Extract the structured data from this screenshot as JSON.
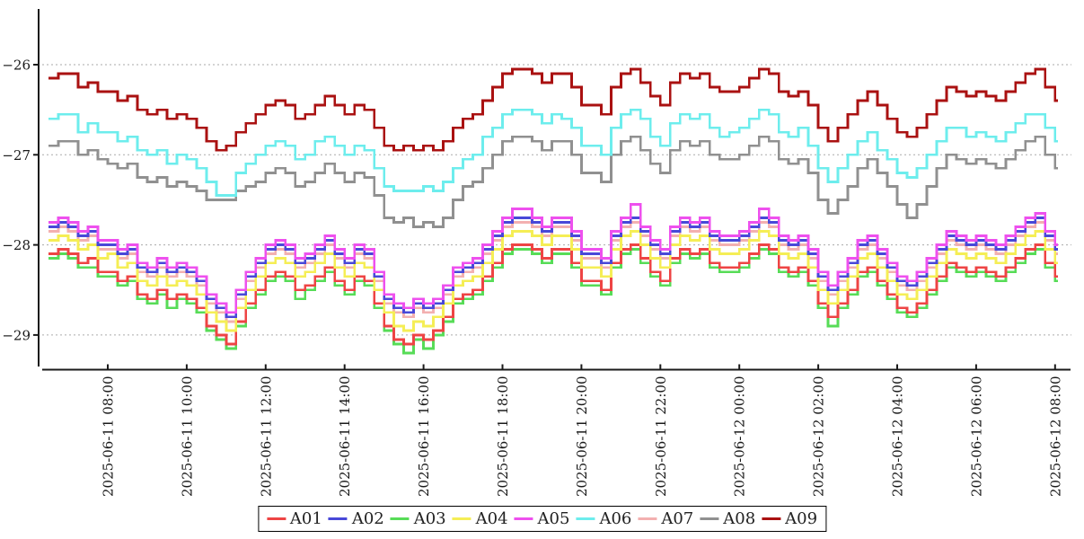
{
  "figure": {
    "background": "#ffffff"
  },
  "chart_data": {
    "type": "line",
    "step_style": true,
    "title": "",
    "xlabel": "",
    "ylabel": "",
    "grid": "horizontal-dotted",
    "legend_position": "bottom-center",
    "x_start": "2025-06-11 06:30",
    "x_interval_minutes": 15,
    "x_tick_labels": [
      "2025-06-11 08:00",
      "2025-06-11 10:00",
      "2025-06-11 12:00",
      "2025-06-11 14:00",
      "2025-06-11 16:00",
      "2025-06-11 18:00",
      "2025-06-11 20:00",
      "2025-06-11 22:00",
      "2025-06-12 00:00",
      "2025-06-12 02:00",
      "2025-06-12 04:00",
      "2025-06-12 06:00",
      "2025-06-12 08:00"
    ],
    "y_ticks": [
      -26,
      -27,
      -28,
      -29
    ],
    "y_tick_labels": [
      "−26",
      "−27",
      "−28",
      "−29"
    ],
    "ylim": [
      -29.35,
      -25.38
    ],
    "grid_color": "#aaaaaa",
    "axis_color": "#1a1a1a",
    "series": [
      {
        "name": "A01",
        "color": "#ee4444",
        "z": 2,
        "values": [
          -28.1,
          -28.05,
          -28.1,
          -28.2,
          -28.15,
          -28.3,
          -28.3,
          -28.4,
          -28.35,
          -28.55,
          -28.6,
          -28.5,
          -28.6,
          -28.55,
          -28.6,
          -28.7,
          -28.9,
          -29.0,
          -29.1,
          -28.85,
          -28.65,
          -28.5,
          -28.35,
          -28.3,
          -28.35,
          -28.5,
          -28.45,
          -28.35,
          -28.25,
          -28.4,
          -28.5,
          -28.35,
          -28.4,
          -28.65,
          -28.9,
          -29.05,
          -29.1,
          -29.0,
          -29.05,
          -28.95,
          -28.8,
          -28.6,
          -28.55,
          -28.5,
          -28.35,
          -28.2,
          -28.05,
          -28.0,
          -28.0,
          -28.05,
          -28.15,
          -28.05,
          -28.05,
          -28.2,
          -28.4,
          -28.4,
          -28.5,
          -28.2,
          -28.05,
          -28.0,
          -28.15,
          -28.3,
          -28.4,
          -28.15,
          -28.05,
          -28.1,
          -28.05,
          -28.2,
          -28.25,
          -28.25,
          -28.2,
          -28.1,
          -28.0,
          -28.05,
          -28.25,
          -28.3,
          -28.25,
          -28.4,
          -28.65,
          -28.8,
          -28.65,
          -28.5,
          -28.3,
          -28.25,
          -28.4,
          -28.55,
          -28.7,
          -28.75,
          -28.65,
          -28.5,
          -28.35,
          -28.2,
          -28.25,
          -28.3,
          -28.25,
          -28.3,
          -28.35,
          -28.25,
          -28.15,
          -28.05,
          -28.0,
          -28.2,
          -28.35
        ]
      },
      {
        "name": "A02",
        "color": "#4848d8",
        "z": 4,
        "values": [
          -27.8,
          -27.75,
          -27.8,
          -27.9,
          -27.85,
          -28.0,
          -28.0,
          -28.1,
          -28.05,
          -28.25,
          -28.3,
          -28.2,
          -28.3,
          -28.25,
          -28.3,
          -28.4,
          -28.6,
          -28.7,
          -28.8,
          -28.55,
          -28.35,
          -28.2,
          -28.05,
          -28.0,
          -28.05,
          -28.2,
          -28.15,
          -28.05,
          -27.95,
          -28.1,
          -28.2,
          -28.05,
          -28.1,
          -28.35,
          -28.6,
          -28.7,
          -28.75,
          -28.65,
          -28.7,
          -28.65,
          -28.5,
          -28.3,
          -28.25,
          -28.2,
          -28.05,
          -27.9,
          -27.75,
          -27.7,
          -27.7,
          -27.75,
          -27.85,
          -27.75,
          -27.75,
          -27.9,
          -28.1,
          -28.1,
          -28.2,
          -27.9,
          -27.75,
          -27.7,
          -27.85,
          -28.0,
          -28.1,
          -27.85,
          -27.75,
          -27.8,
          -27.75,
          -27.9,
          -27.95,
          -27.95,
          -27.9,
          -27.8,
          -27.7,
          -27.75,
          -27.95,
          -28.0,
          -27.95,
          -28.1,
          -28.35,
          -28.5,
          -28.35,
          -28.2,
          -28.0,
          -27.95,
          -28.1,
          -28.25,
          -28.4,
          -28.45,
          -28.35,
          -28.2,
          -28.05,
          -27.9,
          -27.95,
          -28.0,
          -27.95,
          -28.0,
          -28.05,
          -27.95,
          -27.85,
          -27.75,
          -27.7,
          -27.9,
          -28.05
        ]
      },
      {
        "name": "A03",
        "color": "#57dc57",
        "z": 1,
        "values": [
          -28.15,
          -28.1,
          -28.15,
          -28.25,
          -28.25,
          -28.35,
          -28.35,
          -28.45,
          -28.4,
          -28.6,
          -28.65,
          -28.55,
          -28.7,
          -28.6,
          -28.65,
          -28.75,
          -28.95,
          -29.05,
          -29.15,
          -28.9,
          -28.7,
          -28.55,
          -28.4,
          -28.35,
          -28.4,
          -28.6,
          -28.5,
          -28.4,
          -28.3,
          -28.45,
          -28.55,
          -28.4,
          -28.45,
          -28.7,
          -28.95,
          -29.1,
          -29.2,
          -29.05,
          -29.15,
          -29.0,
          -28.85,
          -28.65,
          -28.6,
          -28.55,
          -28.4,
          -28.25,
          -28.1,
          -28.05,
          -28.05,
          -28.1,
          -28.2,
          -28.1,
          -28.1,
          -28.25,
          -28.45,
          -28.45,
          -28.55,
          -28.25,
          -28.1,
          -28.05,
          -28.2,
          -28.35,
          -28.45,
          -28.2,
          -28.1,
          -28.15,
          -28.1,
          -28.25,
          -28.3,
          -28.3,
          -28.25,
          -28.15,
          -28.05,
          -28.1,
          -28.3,
          -28.35,
          -28.3,
          -28.45,
          -28.7,
          -28.9,
          -28.7,
          -28.55,
          -28.35,
          -28.3,
          -28.45,
          -28.6,
          -28.75,
          -28.8,
          -28.7,
          -28.55,
          -28.4,
          -28.25,
          -28.3,
          -28.35,
          -28.3,
          -28.35,
          -28.4,
          -28.3,
          -28.2,
          -28.1,
          -28.05,
          -28.25,
          -28.4
        ]
      },
      {
        "name": "A04",
        "color": "#f5ee55",
        "z": 3,
        "values": [
          -27.95,
          -27.9,
          -27.95,
          -28.05,
          -28.0,
          -28.15,
          -28.1,
          -28.25,
          -28.2,
          -28.4,
          -28.45,
          -28.35,
          -28.45,
          -28.4,
          -28.45,
          -28.55,
          -28.75,
          -28.85,
          -28.95,
          -28.7,
          -28.5,
          -28.35,
          -28.2,
          -28.15,
          -28.2,
          -28.35,
          -28.3,
          -28.2,
          -28.1,
          -28.25,
          -28.35,
          -28.2,
          -28.25,
          -28.5,
          -28.75,
          -28.9,
          -28.95,
          -28.85,
          -28.9,
          -28.8,
          -28.65,
          -28.45,
          -28.4,
          -28.35,
          -28.2,
          -28.05,
          -27.9,
          -27.85,
          -27.85,
          -27.9,
          -28.0,
          -27.9,
          -27.9,
          -28.05,
          -28.25,
          -28.25,
          -28.35,
          -28.05,
          -27.9,
          -27.85,
          -28.0,
          -28.15,
          -28.25,
          -28.0,
          -27.9,
          -27.95,
          -27.9,
          -28.05,
          -28.1,
          -28.1,
          -28.05,
          -27.95,
          -27.85,
          -27.9,
          -28.1,
          -28.15,
          -28.1,
          -28.25,
          -28.5,
          -28.65,
          -28.5,
          -28.35,
          -28.15,
          -28.1,
          -28.25,
          -28.4,
          -28.55,
          -28.6,
          -28.5,
          -28.35,
          -28.2,
          -28.05,
          -28.1,
          -28.15,
          -28.1,
          -28.15,
          -28.2,
          -28.1,
          -28.0,
          -27.9,
          -27.85,
          -28.05,
          -28.2
        ]
      },
      {
        "name": "A05",
        "color": "#ee50ee",
        "z": 5,
        "values": [
          -27.75,
          -27.7,
          -27.75,
          -27.85,
          -27.8,
          -27.95,
          -27.95,
          -28.05,
          -28.0,
          -28.2,
          -28.25,
          -28.15,
          -28.25,
          -28.2,
          -28.25,
          -28.35,
          -28.55,
          -28.65,
          -28.75,
          -28.5,
          -28.3,
          -28.15,
          -28.0,
          -27.95,
          -28.0,
          -28.15,
          -28.1,
          -28.0,
          -27.9,
          -28.05,
          -28.15,
          -28.0,
          -28.05,
          -28.3,
          -28.55,
          -28.65,
          -28.7,
          -28.6,
          -28.65,
          -28.6,
          -28.45,
          -28.25,
          -28.2,
          -28.15,
          -28.0,
          -27.85,
          -27.7,
          -27.6,
          -27.6,
          -27.7,
          -27.8,
          -27.7,
          -27.7,
          -27.85,
          -28.05,
          -28.05,
          -28.15,
          -27.85,
          -27.7,
          -27.55,
          -27.8,
          -27.95,
          -28.05,
          -27.8,
          -27.7,
          -27.75,
          -27.7,
          -27.85,
          -27.9,
          -27.9,
          -27.85,
          -27.75,
          -27.6,
          -27.7,
          -27.9,
          -27.95,
          -27.9,
          -28.05,
          -28.3,
          -28.45,
          -28.3,
          -28.15,
          -27.95,
          -27.9,
          -28.05,
          -28.2,
          -28.35,
          -28.4,
          -28.3,
          -28.15,
          -28.0,
          -27.85,
          -27.9,
          -27.95,
          -27.9,
          -27.95,
          -28.0,
          -27.9,
          -27.8,
          -27.7,
          -27.65,
          -27.85,
          -28.0
        ]
      },
      {
        "name": "A06",
        "color": "#6deded",
        "z": 7,
        "values": [
          -26.6,
          -26.55,
          -26.55,
          -26.75,
          -26.65,
          -26.75,
          -26.75,
          -26.85,
          -26.8,
          -26.95,
          -27.0,
          -26.95,
          -27.1,
          -27.0,
          -27.05,
          -27.15,
          -27.3,
          -27.45,
          -27.45,
          -27.2,
          -27.1,
          -27.0,
          -26.9,
          -26.85,
          -26.9,
          -27.05,
          -27.0,
          -26.85,
          -26.8,
          -26.9,
          -27.0,
          -26.9,
          -26.95,
          -27.15,
          -27.35,
          -27.4,
          -27.4,
          -27.4,
          -27.35,
          -27.4,
          -27.3,
          -27.15,
          -27.05,
          -27.0,
          -26.8,
          -26.7,
          -26.55,
          -26.5,
          -26.5,
          -26.55,
          -26.65,
          -26.55,
          -26.6,
          -26.7,
          -26.9,
          -26.9,
          -27.0,
          -26.7,
          -26.55,
          -26.5,
          -26.6,
          -26.8,
          -26.9,
          -26.65,
          -26.55,
          -26.6,
          -26.55,
          -26.7,
          -26.8,
          -26.75,
          -26.7,
          -26.6,
          -26.5,
          -26.55,
          -26.75,
          -26.8,
          -26.7,
          -26.9,
          -27.15,
          -27.3,
          -27.15,
          -27.0,
          -26.85,
          -26.75,
          -26.95,
          -27.05,
          -27.2,
          -27.25,
          -27.15,
          -27.0,
          -26.85,
          -26.7,
          -26.7,
          -26.8,
          -26.75,
          -26.8,
          -26.85,
          -26.75,
          -26.65,
          -26.55,
          -26.55,
          -26.7,
          -26.85
        ]
      },
      {
        "name": "A07",
        "color": "#f3b0b0",
        "z": 0,
        "values": [
          -27.85,
          -27.8,
          -27.85,
          -27.95,
          -27.9,
          -28.05,
          -28.05,
          -28.15,
          -28.1,
          -28.3,
          -28.35,
          -28.25,
          -28.35,
          -28.3,
          -28.35,
          -28.45,
          -28.65,
          -28.75,
          -28.85,
          -28.6,
          -28.4,
          -28.25,
          -28.1,
          -28.05,
          -28.1,
          -28.25,
          -28.2,
          -28.1,
          -28.0,
          -28.15,
          -28.25,
          -28.1,
          -28.15,
          -28.4,
          -28.65,
          -28.75,
          -28.8,
          -28.7,
          -28.75,
          -28.7,
          -28.55,
          -28.35,
          -28.3,
          -28.25,
          -28.1,
          -27.95,
          -27.8,
          -27.75,
          -27.75,
          -27.8,
          -27.9,
          -27.8,
          -27.8,
          -27.95,
          -28.15,
          -28.15,
          -28.25,
          -27.95,
          -27.8,
          -27.75,
          -27.9,
          -28.05,
          -28.15,
          -27.9,
          -27.8,
          -27.85,
          -27.8,
          -27.95,
          -28.0,
          -28.0,
          -27.95,
          -27.85,
          -27.75,
          -27.8,
          -28.0,
          -28.05,
          -28.0,
          -28.15,
          -28.4,
          -28.55,
          -28.4,
          -28.25,
          -28.05,
          -28.0,
          -28.15,
          -28.3,
          -28.45,
          -28.5,
          -28.4,
          -28.25,
          -28.1,
          -27.95,
          -28.0,
          -28.05,
          -28.0,
          -28.05,
          -28.1,
          -28.0,
          -27.9,
          -27.8,
          -27.75,
          -27.95,
          -28.1
        ]
      },
      {
        "name": "A08",
        "color": "#909090",
        "z": 6,
        "values": [
          -26.9,
          -26.85,
          -26.85,
          -27.0,
          -26.95,
          -27.05,
          -27.1,
          -27.15,
          -27.1,
          -27.25,
          -27.3,
          -27.25,
          -27.35,
          -27.3,
          -27.35,
          -27.4,
          -27.5,
          -27.5,
          -27.5,
          -27.4,
          -27.35,
          -27.3,
          -27.2,
          -27.15,
          -27.2,
          -27.35,
          -27.3,
          -27.2,
          -27.1,
          -27.2,
          -27.3,
          -27.2,
          -27.25,
          -27.45,
          -27.7,
          -27.75,
          -27.7,
          -27.8,
          -27.75,
          -27.8,
          -27.7,
          -27.5,
          -27.35,
          -27.3,
          -27.15,
          -27.0,
          -26.85,
          -26.8,
          -26.8,
          -26.85,
          -26.95,
          -26.85,
          -26.85,
          -27.0,
          -27.2,
          -27.2,
          -27.3,
          -27.0,
          -26.85,
          -26.8,
          -26.95,
          -27.1,
          -27.2,
          -26.95,
          -26.85,
          -26.9,
          -26.85,
          -27.0,
          -27.05,
          -27.05,
          -27.0,
          -26.9,
          -26.8,
          -26.85,
          -27.05,
          -27.1,
          -27.05,
          -27.2,
          -27.5,
          -27.65,
          -27.5,
          -27.35,
          -27.15,
          -27.05,
          -27.2,
          -27.35,
          -27.55,
          -27.7,
          -27.55,
          -27.35,
          -27.15,
          -27.0,
          -27.05,
          -27.1,
          -27.05,
          -27.1,
          -27.15,
          -27.05,
          -26.95,
          -26.85,
          -26.8,
          -27.0,
          -27.15
        ]
      },
      {
        "name": "A09",
        "color": "#aa1111",
        "z": 8,
        "values": [
          -26.15,
          -26.1,
          -26.1,
          -26.25,
          -26.2,
          -26.3,
          -26.3,
          -26.4,
          -26.35,
          -26.5,
          -26.55,
          -26.5,
          -26.6,
          -26.55,
          -26.6,
          -26.7,
          -26.85,
          -26.95,
          -26.9,
          -26.75,
          -26.65,
          -26.55,
          -26.45,
          -26.4,
          -26.45,
          -26.6,
          -26.55,
          -26.45,
          -26.35,
          -26.45,
          -26.55,
          -26.45,
          -26.5,
          -26.7,
          -26.9,
          -26.95,
          -26.9,
          -26.95,
          -26.9,
          -26.95,
          -26.85,
          -26.7,
          -26.6,
          -26.55,
          -26.4,
          -26.25,
          -26.1,
          -26.05,
          -26.05,
          -26.1,
          -26.2,
          -26.1,
          -26.1,
          -26.25,
          -26.45,
          -26.45,
          -26.55,
          -26.25,
          -26.1,
          -26.05,
          -26.2,
          -26.35,
          -26.45,
          -26.2,
          -26.1,
          -26.15,
          -26.1,
          -26.25,
          -26.3,
          -26.3,
          -26.25,
          -26.15,
          -26.05,
          -26.1,
          -26.3,
          -26.35,
          -26.3,
          -26.45,
          -26.7,
          -26.85,
          -26.7,
          -26.55,
          -26.4,
          -26.3,
          -26.45,
          -26.6,
          -26.75,
          -26.8,
          -26.7,
          -26.55,
          -26.4,
          -26.25,
          -26.3,
          -26.35,
          -26.3,
          -26.35,
          -26.4,
          -26.3,
          -26.2,
          -26.1,
          -26.05,
          -26.25,
          -26.4
        ]
      }
    ]
  }
}
